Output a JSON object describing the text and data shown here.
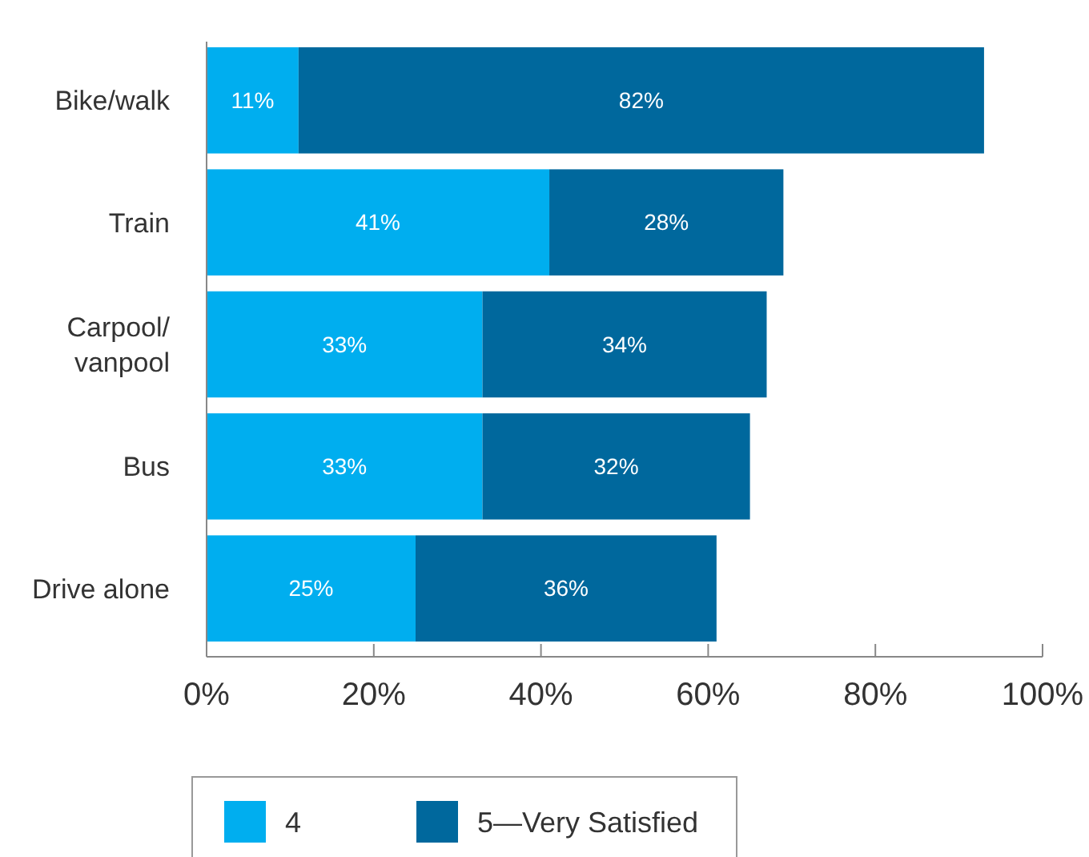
{
  "chart_data": {
    "type": "bar",
    "orientation": "horizontal",
    "stacked": true,
    "categories": [
      "Bike/walk",
      "Train",
      "Carpool/\nvanpool",
      "Bus",
      "Drive alone"
    ],
    "series": [
      {
        "name": "4",
        "color": "#00aeef",
        "values": [
          11,
          41,
          33,
          33,
          25
        ],
        "value_labels": [
          "11%",
          "41%",
          "33%",
          "33%",
          "25%"
        ]
      },
      {
        "name": "5—Very Satisfied",
        "color": "#00689d",
        "values": [
          82,
          28,
          34,
          32,
          36
        ],
        "value_labels": [
          "82%",
          "28%",
          "34%",
          "32%",
          "36%"
        ]
      }
    ],
    "xlim": [
      0,
      100
    ],
    "xticks": [
      {
        "value": 0,
        "label": "0%"
      },
      {
        "value": 20,
        "label": "20%"
      },
      {
        "value": 40,
        "label": "40%"
      },
      {
        "value": 60,
        "label": "60%"
      },
      {
        "value": 80,
        "label": "80%"
      },
      {
        "value": 100,
        "label": "100%"
      }
    ],
    "grid": false,
    "legend": "bottom"
  }
}
